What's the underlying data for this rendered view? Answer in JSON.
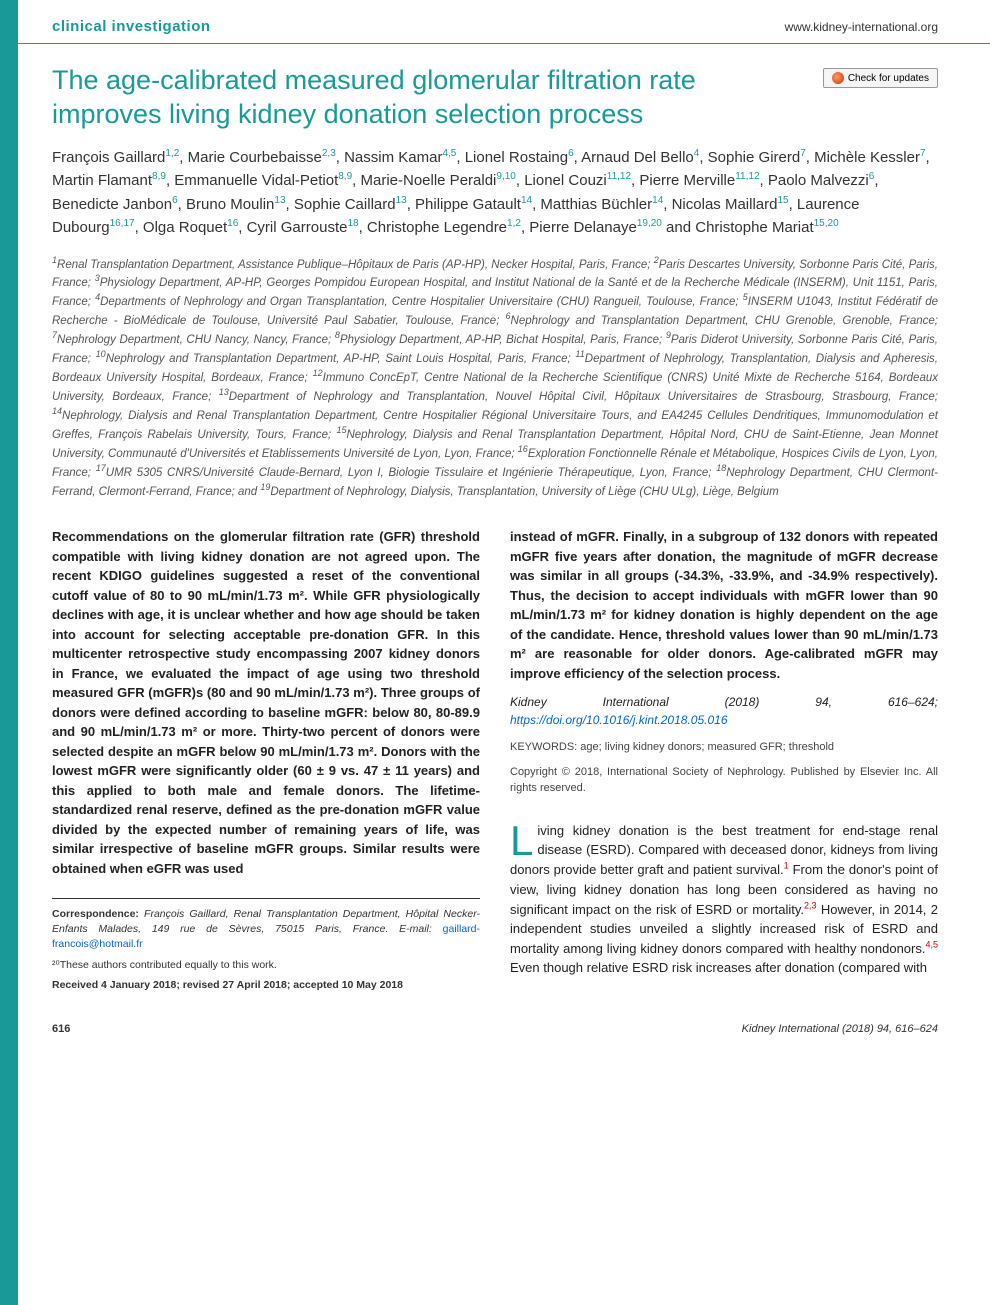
{
  "header": {
    "section_label": "clinical investigation",
    "site_url": "www.kidney-international.org"
  },
  "title": "The age-calibrated measured glomerular filtration rate improves living kidney donation selection process",
  "updates_button": "Check for updates",
  "authors_html": "François Gaillard<sup>1,2</sup>, Marie Courbebaisse<sup>2,3</sup>, Nassim Kamar<sup>4,5</sup>, Lionel Rostaing<sup>6</sup>, Arnaud Del Bello<sup>4</sup>, Sophie Girerd<sup>7</sup>, Michèle Kessler<sup>7</sup>, Martin Flamant<sup>8,9</sup>, Emmanuelle Vidal-Petiot<sup>8,9</sup>, Marie-Noelle Peraldi<sup>9,10</sup>, Lionel Couzi<sup>11,12</sup>, Pierre Merville<sup>11,12</sup>, Paolo Malvezzi<sup>6</sup>, Benedicte Janbon<sup>6</sup>, Bruno Moulin<sup>13</sup>, Sophie Caillard<sup>13</sup>, Philippe Gatault<sup>14</sup>, Matthias Büchler<sup>14</sup>, Nicolas Maillard<sup>15</sup>, Laurence Dubourg<sup>16,17</sup>, Olga Roquet<sup>16</sup>, Cyril Garrouste<sup>18</sup>, Christophe Legendre<sup>1,2</sup>, Pierre Delanaye<sup>19,20</sup> and Christophe Mariat<sup>15,20</sup>",
  "affiliations_html": "<sup>1</sup>Renal Transplantation Department, Assistance Publique–Hôpitaux de Paris (AP-HP), Necker Hospital, Paris, France; <sup>2</sup>Paris Descartes University, Sorbonne Paris Cité, Paris, France; <sup>3</sup>Physiology Department, AP-HP, Georges Pompidou European Hospital, and Institut National de la Santé et de la Recherche Médicale (INSERM), Unit 1151, Paris, France; <sup>4</sup>Departments of Nephrology and Organ Transplantation, Centre Hospitalier Universitaire (CHU) Rangueil, Toulouse, France; <sup>5</sup>INSERM U1043, Institut Fédératif de Recherche - BioMédicale de Toulouse, Université Paul Sabatier, Toulouse, France; <sup>6</sup>Nephrology and Transplantation Department, CHU Grenoble, Grenoble, France; <sup>7</sup>Nephrology Department, CHU Nancy, Nancy, France; <sup>8</sup>Physiology Department, AP-HP, Bichat Hospital, Paris, France; <sup>9</sup>Paris Diderot University, Sorbonne Paris Cité, Paris, France; <sup>10</sup>Nephrology and Transplantation Department, AP-HP, Saint Louis Hospital, Paris, France; <sup>11</sup>Department of Nephrology, Transplantation, Dialysis and Apheresis, Bordeaux University Hospital, Bordeaux, France; <sup>12</sup>Immuno ConcEpT, Centre National de la Recherche Scientifique (CNRS) Unité Mixte de Recherche 5164, Bordeaux University, Bordeaux, France; <sup>13</sup>Department of Nephrology and Transplantation, Nouvel Hôpital Civil, Hôpitaux Universitaires de Strasbourg, Strasbourg, France; <sup>14</sup>Nephrology, Dialysis and Renal Transplantation Department, Centre Hospitalier Régional Universitaire Tours, and EA4245 Cellules Dendritiques, Immunomodulation et Greffes, François Rabelais University, Tours, France; <sup>15</sup>Nephrology, Dialysis and Renal Transplantation Department, Hôpital Nord, CHU de Saint-Etienne, Jean Monnet University, Communauté d'Universités et Etablissements Université de Lyon, Lyon, France; <sup>16</sup>Exploration Fonctionnelle Rénale et Métabolique, Hospices Civils de Lyon, Lyon, France; <sup>17</sup>UMR 5305 CNRS/Université Claude-Bernard, Lyon I, Biologie Tissulaire et Ingénierie Thérapeutique, Lyon, France; <sup>18</sup>Nephrology Department, CHU Clermont-Ferrand, Clermont-Ferrand, France; and <sup>19</sup>Department of Nephrology, Dialysis, Transplantation, University of Liège (CHU ULg), Liège, Belgium",
  "abstract_col1": "Recommendations on the glomerular filtration rate (GFR) threshold compatible with living kidney donation are not agreed upon. The recent KDIGO guidelines suggested a reset of the conventional cutoff value of 80 to 90 mL/min/1.73 m². While GFR physiologically declines with age, it is unclear whether and how age should be taken into account for selecting acceptable pre-donation GFR. In this multicenter retrospective study encompassing 2007 kidney donors in France, we evaluated the impact of age using two threshold measured GFR (mGFR)s (80 and 90 mL/min/1.73 m²). Three groups of donors were defined according to baseline mGFR: below 80, 80-89.9 and 90 mL/min/1.73 m² or more. Thirty-two percent of donors were selected despite an mGFR below 90 mL/min/1.73 m². Donors with the lowest mGFR were significantly older (60 ± 9 vs. 47 ± 11 years) and this applied to both male and female donors. The lifetime-standardized renal reserve, defined as the pre-donation mGFR value divided by the expected number of remaining years of life, was similar irrespective of baseline mGFR groups. Similar results were obtained when eGFR was used",
  "abstract_col2": "instead of mGFR. Finally, in a subgroup of 132 donors with repeated mGFR five years after donation, the magnitude of mGFR decrease was similar in all groups (-34.3%, -33.9%, and -34.9% respectively). Thus, the decision to accept individuals with mGFR lower than 90 mL/min/1.73 m² for kidney donation is highly dependent on the age of the candidate. Hence, threshold values lower than 90 mL/min/1.73 m² are reasonable for older donors. Age-calibrated mGFR may improve efficiency of the selection process.",
  "journal_citation": "Kidney International (2018) 94, 616–624;",
  "doi": "https://doi.org/10.1016/j.kint.2018.05.016",
  "keywords": "KEYWORDS: age; living kidney donors; measured GFR; threshold",
  "copyright": "Copyright © 2018, International Society of Nephrology. Published by Elsevier Inc. All rights reserved.",
  "intro_text": "iving kidney donation is the best treatment for end-stage renal disease (ESRD). Compared with deceased donor, kidneys from living donors provide better graft and patient survival.¹ From the donor's point of view, living kidney donation has long been considered as having no significant impact on the risk of ESRD or mortality.²,³ However, in 2014, 2 independent studies unveiled a slightly increased risk of ESRD and mortality among living kidney donors compared with healthy nondonors.⁴,⁵ Even though relative ESRD risk increases after donation (compared with",
  "intro_dropcap": "L",
  "correspondence": {
    "label": "Correspondence:",
    "text": "François Gaillard, Renal Transplantation Department, Hôpital Necker-Enfants Malades, 149 rue de Sèvres, 75015 Paris, France. E-mail:",
    "email": "gaillard-francois@hotmail.fr"
  },
  "equal_contrib": "²⁰These authors contributed equally to this work.",
  "received": "Received 4 January 2018; revised 27 April 2018; accepted 10 May 2018",
  "footer": {
    "page_num": "616",
    "journal_ref": "Kidney International (2018) 94, 616–624"
  },
  "colors": {
    "teal": "#1a9999",
    "link": "#0066cc",
    "ref": "#cc0000"
  }
}
